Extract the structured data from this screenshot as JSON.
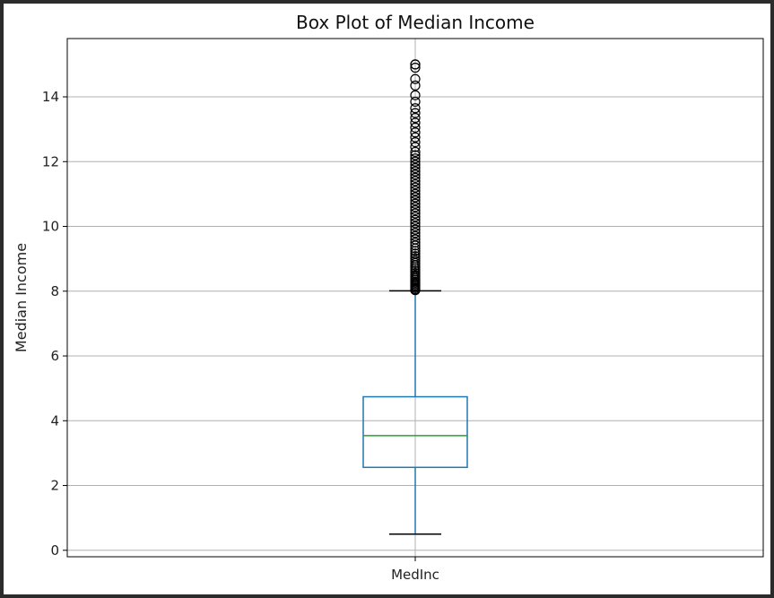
{
  "chart_data": {
    "type": "box",
    "title": "Box Plot of Median Income",
    "xlabel": "",
    "ylabel": "Median Income",
    "category": "MedInc",
    "ylim": [
      -0.2,
      15.8
    ],
    "yticks": [
      0,
      2,
      4,
      6,
      8,
      10,
      12,
      14
    ],
    "grid": true,
    "box": {
      "whisker_low": 0.5,
      "q1": 2.56,
      "median": 3.54,
      "q3": 4.74,
      "whisker_high": 8.01
    },
    "outliers": [
      8.03,
      8.06,
      8.1,
      8.14,
      8.18,
      8.22,
      8.26,
      8.3,
      8.35,
      8.4,
      8.45,
      8.5,
      8.56,
      8.62,
      8.68,
      8.74,
      8.8,
      8.87,
      8.94,
      9.01,
      9.08,
      9.16,
      9.24,
      9.32,
      9.41,
      9.5,
      9.6,
      9.7,
      9.8,
      9.9,
      10.0,
      10.1,
      10.2,
      10.3,
      10.4,
      10.5,
      10.6,
      10.7,
      10.8,
      10.9,
      11.0,
      11.1,
      11.2,
      11.3,
      11.4,
      11.5,
      11.6,
      11.7,
      11.8,
      11.9,
      12.0,
      12.1,
      12.2,
      12.3,
      12.45,
      12.6,
      12.75,
      12.9,
      13.05,
      13.2,
      13.35,
      13.5,
      13.65,
      13.85,
      14.05,
      14.35,
      14.55,
      14.9,
      15.0,
      15.0
    ],
    "colors": {
      "box": "#1f77b4",
      "median": "#2ca02c",
      "caps": "#000000",
      "outlier": "#000000",
      "grid": "#b0b0b0"
    }
  }
}
